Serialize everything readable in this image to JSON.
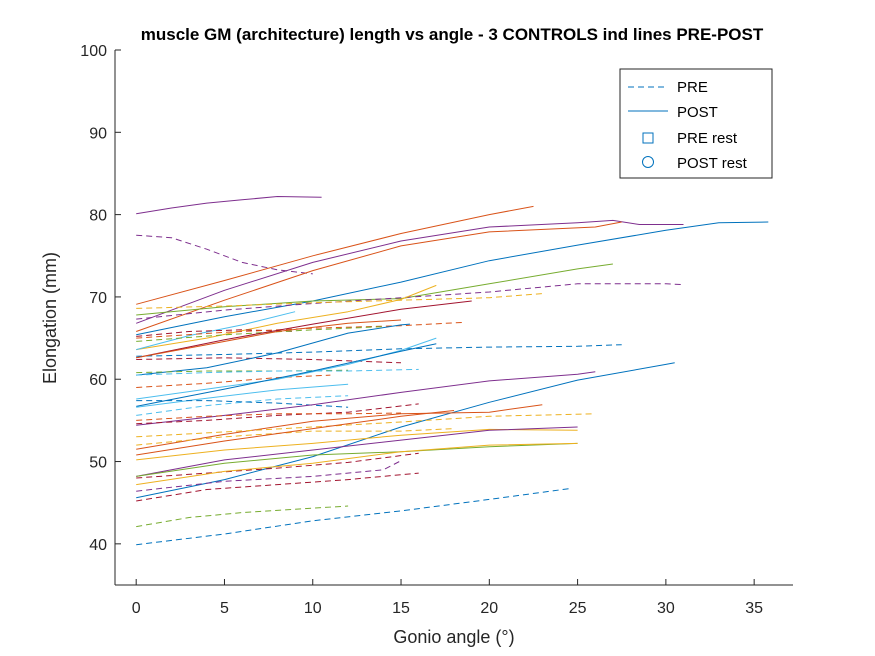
{
  "chart_data": {
    "type": "line",
    "title": "muscle GM (architecture) length vs angle - 3 CONTROLS ind lines PRE-POST",
    "xlabel": "Gonio angle (°)",
    "ylabel": "Elongation (mm)",
    "xlim": [
      -1.2,
      37.2
    ],
    "ylim": [
      35,
      100
    ],
    "xticks": [
      0,
      5,
      10,
      15,
      20,
      25,
      30,
      35
    ],
    "yticks": [
      40,
      50,
      60,
      70,
      80,
      90,
      100
    ],
    "xtick_labels": [
      "0",
      "5",
      "10",
      "15",
      "20",
      "25",
      "30",
      "35"
    ],
    "ytick_labels": [
      "40",
      "50",
      "60",
      "70",
      "80",
      "90",
      "100"
    ],
    "grid": false,
    "legend": {
      "location": "top-right",
      "entries": [
        {
          "label": "PRE",
          "style": "dashed",
          "marker": ""
        },
        {
          "label": "POST",
          "style": "solid",
          "marker": ""
        },
        {
          "label": "PRE rest",
          "style": "none",
          "marker": "square"
        },
        {
          "label": "POST rest",
          "style": "none",
          "marker": "circle"
        }
      ],
      "color": "#0072bd"
    },
    "series": [
      {
        "group": "POST",
        "color": "#7e2f8e",
        "points": [
          [
            0,
            80.1
          ],
          [
            2,
            80.8
          ],
          [
            4,
            81.4
          ],
          [
            6,
            81.8
          ],
          [
            8,
            82.2
          ],
          [
            10.5,
            82.1
          ]
        ]
      },
      {
        "group": "PRE",
        "color": "#7e2f8e",
        "points": [
          [
            0,
            77.5
          ],
          [
            2,
            77.2
          ],
          [
            4,
            75.8
          ],
          [
            6,
            74.2
          ],
          [
            8,
            73.3
          ],
          [
            10,
            72.8
          ]
        ]
      },
      {
        "group": "POST",
        "color": "#d95319",
        "points": [
          [
            0,
            69.1
          ],
          [
            5,
            72.0
          ],
          [
            10,
            75.0
          ],
          [
            15,
            77.7
          ],
          [
            20,
            80.0
          ],
          [
            22.5,
            81.0
          ]
        ]
      },
      {
        "group": "POST",
        "color": "#7e2f8e",
        "points": [
          [
            0,
            66.8
          ],
          [
            5,
            70.8
          ],
          [
            10,
            74.2
          ],
          [
            15,
            76.8
          ],
          [
            20,
            78.5
          ],
          [
            25,
            79.0
          ],
          [
            27,
            79.3
          ],
          [
            28.5,
            78.8
          ],
          [
            31,
            78.8
          ]
        ]
      },
      {
        "group": "POST",
        "color": "#d95319",
        "points": [
          [
            0,
            65.8
          ],
          [
            5,
            69.6
          ],
          [
            10,
            73.2
          ],
          [
            15,
            76.2
          ],
          [
            20,
            77.9
          ],
          [
            26,
            78.5
          ],
          [
            27.5,
            79.1
          ]
        ]
      },
      {
        "group": "POST",
        "color": "#0072bd",
        "points": [
          [
            0,
            65.4
          ],
          [
            5,
            67.6
          ],
          [
            10,
            69.5
          ],
          [
            15,
            71.8
          ],
          [
            20,
            74.4
          ],
          [
            25,
            76.3
          ],
          [
            30,
            78.1
          ],
          [
            33,
            79.0
          ],
          [
            35.8,
            79.1
          ]
        ]
      },
      {
        "group": "POST",
        "color": "#77ac30",
        "points": [
          [
            0,
            67.8
          ],
          [
            5,
            68.8
          ],
          [
            10,
            69.5
          ],
          [
            15,
            69.8
          ],
          [
            20,
            71.6
          ],
          [
            25,
            73.4
          ],
          [
            27,
            74.0
          ]
        ]
      },
      {
        "group": "PRE",
        "color": "#7e2f8e",
        "points": [
          [
            0,
            67.3
          ],
          [
            5,
            68.4
          ],
          [
            10,
            69.2
          ],
          [
            15,
            69.9
          ],
          [
            20,
            70.6
          ],
          [
            25,
            71.6
          ],
          [
            30,
            71.6
          ],
          [
            31,
            71.5
          ]
        ]
      },
      {
        "group": "PRE",
        "color": "#edb120",
        "points": [
          [
            0,
            68.6
          ],
          [
            5,
            68.9
          ],
          [
            10,
            69.3
          ],
          [
            15,
            69.6
          ],
          [
            20,
            69.9
          ],
          [
            23,
            70.4
          ]
        ]
      },
      {
        "group": "POST",
        "color": "#edb120",
        "points": [
          [
            0,
            63.6
          ],
          [
            4,
            65.0
          ],
          [
            8,
            66.8
          ],
          [
            12,
            68.2
          ],
          [
            15,
            69.7
          ],
          [
            17,
            71.4
          ]
        ]
      },
      {
        "group": "POST",
        "color": "#4dbeee",
        "points": [
          [
            0,
            63.6
          ],
          [
            3,
            65.3
          ],
          [
            6,
            66.6
          ],
          [
            9,
            68.2
          ]
        ]
      },
      {
        "group": "PRE",
        "color": "#a2142f",
        "points": [
          [
            0,
            65.2
          ],
          [
            3,
            65.8
          ],
          [
            6,
            66.0
          ],
          [
            9,
            65.8
          ]
        ]
      },
      {
        "group": "PRE",
        "color": "#d95319",
        "points": [
          [
            0,
            65.0
          ],
          [
            5,
            65.7
          ],
          [
            10,
            66.2
          ],
          [
            15,
            66.5
          ],
          [
            18.5,
            66.9
          ]
        ]
      },
      {
        "group": "PRE",
        "color": "#77ac30",
        "points": [
          [
            0,
            64.6
          ],
          [
            5,
            65.4
          ],
          [
            10,
            66.0
          ],
          [
            14,
            66.4
          ]
        ]
      },
      {
        "group": "POST",
        "color": "#a2142f",
        "points": [
          [
            0,
            62.6
          ],
          [
            5,
            64.8
          ],
          [
            10,
            66.7
          ],
          [
            15,
            68.5
          ],
          [
            19,
            69.5
          ]
        ]
      },
      {
        "group": "PRE",
        "color": "#0072bd",
        "points": [
          [
            0,
            62.8
          ],
          [
            5,
            63.0
          ],
          [
            10,
            63.3
          ],
          [
            15,
            63.7
          ],
          [
            20,
            63.9
          ],
          [
            25,
            64.0
          ],
          [
            27.5,
            64.2
          ]
        ]
      },
      {
        "group": "PRE",
        "color": "#a2142f",
        "points": [
          [
            0,
            62.4
          ],
          [
            5,
            62.6
          ],
          [
            10,
            62.4
          ],
          [
            15,
            62.0
          ]
        ]
      },
      {
        "group": "POST",
        "color": "#0072bd",
        "points": [
          [
            0,
            60.5
          ],
          [
            4,
            61.4
          ],
          [
            8,
            63.2
          ],
          [
            12,
            65.6
          ],
          [
            15,
            66.6
          ],
          [
            15.5,
            66.7
          ]
        ]
      },
      {
        "group": "POST",
        "color": "#d95319",
        "points": [
          [
            0,
            62.6
          ],
          [
            4,
            64.2
          ],
          [
            8,
            65.8
          ],
          [
            12,
            66.8
          ],
          [
            15,
            67.2
          ]
        ]
      },
      {
        "group": "PRE",
        "color": "#77ac30",
        "points": [
          [
            0,
            60.8
          ],
          [
            4,
            61.0
          ],
          [
            8,
            61.0
          ],
          [
            12,
            61.1
          ]
        ]
      },
      {
        "group": "PRE",
        "color": "#4dbeee",
        "points": [
          [
            0,
            60.5
          ],
          [
            4,
            60.8
          ],
          [
            8,
            61.0
          ],
          [
            12,
            61.0
          ],
          [
            16,
            61.2
          ]
        ]
      },
      {
        "group": "PRE",
        "color": "#d95319",
        "points": [
          [
            0,
            59.0
          ],
          [
            4,
            59.5
          ],
          [
            8,
            60.2
          ],
          [
            11,
            60.5
          ]
        ]
      },
      {
        "group": "POST",
        "color": "#4dbeee",
        "points": [
          [
            0,
            57.6
          ],
          [
            4,
            58.8
          ],
          [
            8,
            60.0
          ],
          [
            12,
            61.8
          ],
          [
            15,
            63.5
          ],
          [
            17,
            65.0
          ]
        ]
      },
      {
        "group": "POST",
        "color": "#0072bd",
        "points": [
          [
            0,
            56.7
          ],
          [
            5,
            58.8
          ],
          [
            10,
            61.0
          ],
          [
            15,
            63.4
          ],
          [
            17,
            64.3
          ]
        ]
      },
      {
        "group": "POST",
        "color": "#4dbeee",
        "points": [
          [
            0,
            56.6
          ],
          [
            4,
            57.7
          ],
          [
            8,
            58.7
          ],
          [
            12,
            59.4
          ]
        ]
      },
      {
        "group": "PRE",
        "color": "#4dbeee",
        "points": [
          [
            0,
            55.6
          ],
          [
            4,
            56.8
          ],
          [
            8,
            57.6
          ],
          [
            12,
            58.0
          ]
        ]
      },
      {
        "group": "PRE",
        "color": "#0072bd",
        "points": [
          [
            0,
            57.4
          ],
          [
            4,
            57.4
          ],
          [
            8,
            57.1
          ],
          [
            12,
            56.6
          ]
        ]
      },
      {
        "group": "POST",
        "color": "#7e2f8e",
        "points": [
          [
            0,
            54.4
          ],
          [
            5,
            55.6
          ],
          [
            10,
            56.9
          ],
          [
            15,
            58.4
          ],
          [
            20,
            59.8
          ],
          [
            25,
            60.6
          ],
          [
            26,
            60.9
          ]
        ]
      },
      {
        "group": "PRE",
        "color": "#a2142f",
        "points": [
          [
            0,
            54.6
          ],
          [
            4,
            55.0
          ],
          [
            8,
            55.6
          ],
          [
            12,
            56.0
          ],
          [
            16,
            57.0
          ]
        ]
      },
      {
        "group": "PRE",
        "color": "#d95319",
        "points": [
          [
            0,
            55.0
          ],
          [
            4,
            55.5
          ],
          [
            8,
            55.8
          ],
          [
            12,
            55.8
          ],
          [
            15,
            55.9
          ]
        ]
      },
      {
        "group": "POST",
        "color": "#0072bd",
        "points": [
          [
            0,
            45.6
          ],
          [
            5,
            47.8
          ],
          [
            10,
            50.6
          ],
          [
            15,
            54.2
          ],
          [
            20,
            57.2
          ],
          [
            25,
            59.9
          ],
          [
            30,
            61.8
          ],
          [
            30.5,
            62.0
          ]
        ]
      },
      {
        "group": "POST",
        "color": "#d95319",
        "points": [
          [
            0,
            51.5
          ],
          [
            5,
            53.3
          ],
          [
            10,
            54.9
          ],
          [
            15,
            55.8
          ],
          [
            20,
            56.0
          ],
          [
            23,
            56.9
          ]
        ]
      },
      {
        "group": "PRE",
        "color": "#edb120",
        "points": [
          [
            0,
            53.0
          ],
          [
            5,
            53.6
          ],
          [
            10,
            54.2
          ],
          [
            15,
            54.8
          ],
          [
            20,
            55.5
          ],
          [
            26,
            55.8
          ]
        ]
      },
      {
        "group": "PRE",
        "color": "#edb120",
        "points": [
          [
            0,
            52.0
          ],
          [
            5,
            53.0
          ],
          [
            10,
            53.7
          ],
          [
            15,
            53.7
          ],
          [
            18,
            54.0
          ]
        ]
      },
      {
        "group": "POST",
        "color": "#edb120",
        "points": [
          [
            0,
            50.2
          ],
          [
            5,
            51.4
          ],
          [
            10,
            52.2
          ],
          [
            15,
            53.2
          ],
          [
            20,
            53.9
          ],
          [
            25,
            53.8
          ]
        ]
      },
      {
        "group": "POST",
        "color": "#d95319",
        "points": [
          [
            0,
            50.8
          ],
          [
            5,
            52.5
          ],
          [
            10,
            54.0
          ],
          [
            15,
            55.5
          ],
          [
            18,
            56.2
          ]
        ]
      },
      {
        "group": "POST",
        "color": "#7e2f8e",
        "points": [
          [
            0,
            48.2
          ],
          [
            5,
            50.2
          ],
          [
            10,
            51.4
          ],
          [
            15,
            52.6
          ],
          [
            20,
            53.8
          ],
          [
            25,
            54.2
          ]
        ]
      },
      {
        "group": "POST",
        "color": "#77ac30",
        "points": [
          [
            0,
            48.2
          ],
          [
            5,
            49.8
          ],
          [
            10,
            50.8
          ],
          [
            15,
            51.2
          ],
          [
            20,
            51.8
          ],
          [
            25,
            52.2
          ]
        ]
      },
      {
        "group": "PRE",
        "color": "#a2142f",
        "points": [
          [
            0,
            48.0
          ],
          [
            4,
            48.6
          ],
          [
            8,
            49.2
          ],
          [
            12,
            49.9
          ],
          [
            16,
            51.0
          ]
        ]
      },
      {
        "group": "POST",
        "color": "#edb120",
        "points": [
          [
            0,
            47.2
          ],
          [
            5,
            48.8
          ],
          [
            10,
            49.8
          ],
          [
            15,
            51.2
          ],
          [
            20,
            52.0
          ],
          [
            25,
            52.2
          ]
        ]
      },
      {
        "group": "PRE",
        "color": "#7e2f8e",
        "points": [
          [
            0,
            46.4
          ],
          [
            5,
            47.6
          ],
          [
            10,
            48.2
          ],
          [
            14,
            49.0
          ],
          [
            15,
            50.1
          ]
        ]
      },
      {
        "group": "PRE",
        "color": "#a2142f",
        "points": [
          [
            0,
            45.2
          ],
          [
            4,
            46.6
          ],
          [
            8,
            47.2
          ],
          [
            12,
            47.8
          ],
          [
            16,
            48.6
          ]
        ]
      },
      {
        "group": "PRE",
        "color": "#77ac30",
        "points": [
          [
            0,
            42.1
          ],
          [
            3,
            43.2
          ],
          [
            6,
            43.8
          ],
          [
            9,
            44.2
          ],
          [
            12,
            44.6
          ]
        ]
      },
      {
        "group": "PRE",
        "color": "#0072bd",
        "points": [
          [
            0,
            39.9
          ],
          [
            5,
            41.2
          ],
          [
            10,
            42.8
          ],
          [
            15,
            44.0
          ],
          [
            20,
            45.4
          ],
          [
            24.5,
            46.7
          ]
        ]
      }
    ]
  }
}
